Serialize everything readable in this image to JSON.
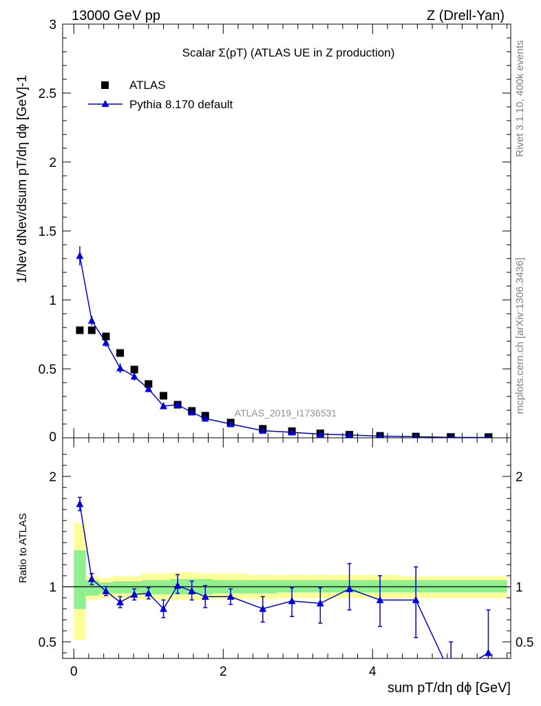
{
  "header": {
    "energy_label": "13000 GeV pp",
    "process_label": "Z (Drell-Yan)"
  },
  "side_labels": {
    "rivet": "Rivet 3.1.10,  400k events",
    "mcplots": "mcplots.cern.ch [arXiv:1306.3436]"
  },
  "colors": {
    "data": "#000000",
    "mc": "#0000dd",
    "band_inner": "#90f090",
    "band_outer": "#ffff99"
  },
  "chart_data": [
    {
      "type": "scatter",
      "title": "Scalar Σ(pT) (ATLAS UE in Z production)",
      "xlabel": "sum pT/dη dϕ [GeV]",
      "ylabel": "1/Nev dNev/dsum pT/dη dϕ  [GeV]-1",
      "analysis_label": "ATLAS_2019_I1736531",
      "xlim": [
        -0.15,
        5.85
      ],
      "ylim": [
        0,
        3
      ],
      "yticks": [
        0.5,
        1,
        1.5,
        2,
        2.5,
        3
      ],
      "ytick_labels": [
        "0.5",
        "1",
        "1.5",
        "2",
        "2.5",
        "3"
      ],
      "y_zero_label": "0",
      "legend_position": "top-left",
      "x": [
        0.08,
        0.24,
        0.43,
        0.62,
        0.81,
        1.0,
        1.2,
        1.39,
        1.58,
        1.76,
        2.1,
        2.53,
        2.92,
        3.3,
        3.69,
        4.1,
        4.58,
        5.05,
        5.55
      ],
      "series": [
        {
          "name": "ATLAS",
          "marker": "square",
          "values": [
            0.78,
            0.78,
            0.735,
            0.615,
            0.495,
            0.39,
            0.305,
            0.24,
            0.195,
            0.16,
            0.11,
            0.065,
            0.048,
            0.032,
            0.022,
            0.014,
            0.009,
            0.006,
            0.005
          ]
        },
        {
          "name": "Pythia 8.170 default",
          "marker": "triangle",
          "line": true,
          "values": [
            1.32,
            0.85,
            0.69,
            0.505,
            0.445,
            0.355,
            0.23,
            0.24,
            0.185,
            0.14,
            0.1,
            0.052,
            0.04,
            0.026,
            0.021,
            0.012,
            0.008,
            0.003,
            0.002
          ],
          "errors": [
            0.07,
            0.035,
            0.03,
            0.035,
            0.03,
            0.025,
            0.02,
            0.02,
            0.015,
            0.015,
            0.01,
            0.008,
            0.006,
            0.005,
            0.004,
            0.003,
            0.002,
            0.001,
            0.001
          ]
        }
      ]
    },
    {
      "type": "line",
      "ylabel": "Ratio to ATLAS",
      "xlabel": "sum pT/dη dϕ [GeV]",
      "xlim": [
        -0.15,
        5.85
      ],
      "ylim": [
        0.35,
        2.35
      ],
      "xticks": [
        0,
        2,
        4
      ],
      "xtick_labels": [
        "0",
        "2",
        "4"
      ],
      "yticks": [
        0.5,
        1,
        2
      ],
      "ytick_labels": [
        "0.5",
        "1",
        "2"
      ],
      "bins": [
        [
          0,
          0.16
        ],
        [
          0.16,
          0.34
        ],
        [
          0.34,
          0.52
        ],
        [
          0.52,
          0.72
        ],
        [
          0.72,
          0.91
        ],
        [
          0.91,
          1.1
        ],
        [
          1.1,
          1.29
        ],
        [
          1.29,
          1.48
        ],
        [
          1.48,
          1.67
        ],
        [
          1.67,
          1.86
        ],
        [
          1.86,
          2.33
        ],
        [
          2.33,
          2.72
        ],
        [
          2.72,
          3.11
        ],
        [
          3.11,
          3.5
        ],
        [
          3.5,
          3.89
        ],
        [
          3.89,
          4.34
        ],
        [
          4.34,
          4.82
        ],
        [
          4.82,
          5.29
        ],
        [
          5.29,
          5.8
        ]
      ],
      "band_inner": [
        [
          0.8,
          1.33
        ],
        [
          0.92,
          1.06
        ],
        [
          0.94,
          1.04
        ],
        [
          0.94,
          1.05
        ],
        [
          0.94,
          1.05
        ],
        [
          0.93,
          1.06
        ],
        [
          0.93,
          1.06
        ],
        [
          0.93,
          1.07
        ],
        [
          0.93,
          1.07
        ],
        [
          0.93,
          1.07
        ],
        [
          0.94,
          1.06
        ],
        [
          0.94,
          1.06
        ],
        [
          0.95,
          1.06
        ],
        [
          0.95,
          1.06
        ],
        [
          0.95,
          1.06
        ],
        [
          0.95,
          1.06
        ],
        [
          0.95,
          1.06
        ],
        [
          0.95,
          1.06
        ],
        [
          0.95,
          1.06
        ]
      ],
      "band_outer": [
        [
          0.52,
          1.58
        ],
        [
          0.88,
          1.1
        ],
        [
          0.9,
          1.08
        ],
        [
          0.9,
          1.1
        ],
        [
          0.89,
          1.1
        ],
        [
          0.88,
          1.12
        ],
        [
          0.88,
          1.12
        ],
        [
          0.88,
          1.13
        ],
        [
          0.88,
          1.13
        ],
        [
          0.88,
          1.12
        ],
        [
          0.89,
          1.12
        ],
        [
          0.89,
          1.11
        ],
        [
          0.9,
          1.11
        ],
        [
          0.9,
          1.11
        ],
        [
          0.9,
          1.11
        ],
        [
          0.9,
          1.11
        ],
        [
          0.9,
          1.1
        ],
        [
          0.9,
          1.1
        ],
        [
          0.9,
          1.1
        ]
      ],
      "reference": 1,
      "series": [
        {
          "name": "Pythia 8.170 default",
          "marker": "triangle",
          "line": true,
          "x": [
            0.08,
            0.24,
            0.43,
            0.62,
            0.81,
            1.0,
            1.2,
            1.39,
            1.58,
            1.76,
            2.1,
            2.53,
            2.92,
            3.3,
            3.69,
            4.1,
            4.58,
            5.05,
            5.55
          ],
          "values": [
            1.75,
            1.07,
            0.96,
            0.86,
            0.93,
            0.94,
            0.8,
            1.01,
            0.96,
            0.91,
            0.91,
            0.8,
            0.87,
            0.85,
            0.98,
            0.88,
            0.88,
            0.2,
            0.4
          ],
          "err_low": [
            0.06,
            0.05,
            0.04,
            0.05,
            0.05,
            0.05,
            0.08,
            0.07,
            0.08,
            0.1,
            0.07,
            0.12,
            0.14,
            0.18,
            0.19,
            0.24,
            0.34,
            0.3,
            0.3
          ],
          "err_high": [
            0.06,
            0.05,
            0.04,
            0.05,
            0.05,
            0.05,
            0.08,
            0.1,
            0.09,
            0.1,
            0.07,
            0.11,
            0.12,
            0.14,
            0.23,
            0.22,
            0.3,
            0.3,
            0.39
          ]
        }
      ]
    }
  ]
}
